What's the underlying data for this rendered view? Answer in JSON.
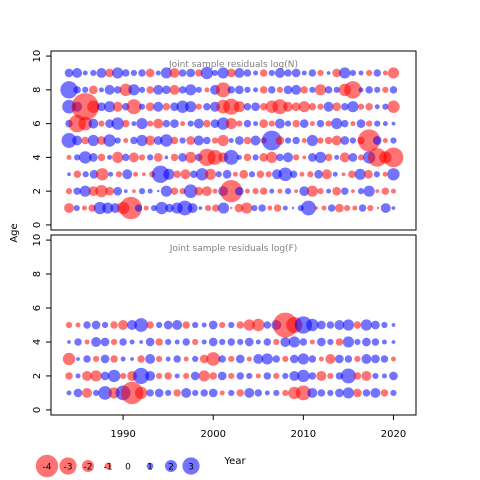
{
  "chart_data": [
    {
      "type": "scatter",
      "title": "Joint sample residuals log(N)",
      "xlabel": "",
      "ylabel": "Age",
      "xlim": [
        1982,
        2022.5
      ],
      "ylim": [
        -0.3,
        10.3
      ],
      "yticks": [
        0,
        2,
        4,
        6,
        8,
        10
      ],
      "x_start": 1984,
      "x_end": 2020,
      "ages": [
        1,
        2,
        3,
        4,
        5,
        6,
        7,
        8,
        9
      ],
      "residuals": {
        "1": [
          -0.8,
          0.5,
          -0.4,
          -0.6,
          1.0,
          0.9,
          0.8,
          -1.0,
          -1.8,
          0.6,
          -0.4,
          0.5,
          1.0,
          0.7,
          0.9,
          1.2,
          0.8,
          0.3,
          -0.5,
          -0.6,
          0.9,
          -0.2,
          -0.7,
          -0.9,
          0.5,
          0.6,
          -0.4,
          -0.6,
          0.4,
          0.2,
          0.5,
          1.2,
          -0.3,
          -0.4,
          0.6,
          -0.7,
          -0.5,
          -0.4,
          0.6,
          -0.5,
          -0.2,
          0.8,
          0.3
        ],
        "2": [
          -0.5,
          0.6,
          0.9,
          -0.8,
          -1.0,
          -0.7,
          0.7,
          0.3,
          -0.3,
          0.5,
          0.4,
          0.2,
          0.9,
          -0.6,
          -0.5,
          1.1,
          -0.7,
          -0.8,
          -0.4,
          0.8,
          -1.8,
          0.7,
          -0.4,
          -0.5,
          -0.6,
          0.4,
          -0.4,
          0.5,
          -0.3,
          0.8,
          -0.9,
          -0.5,
          0.4,
          -0.7,
          0.6,
          -0.3,
          0.5,
          0.9,
          -0.3,
          -0.6,
          -0.4
        ],
        "3": [
          0.3,
          -0.6,
          0.5,
          0.7,
          -1.0,
          0.4,
          -0.5,
          0.8,
          -0.4,
          -0.3,
          -0.5,
          1.4,
          0.9,
          -0.6,
          -0.8,
          0.6,
          1.0,
          -0.9,
          0.5,
          0.7,
          -0.4,
          -0.7,
          0.5,
          -0.6,
          -0.5,
          0.8,
          1.1,
          0.6,
          -0.4,
          -0.5,
          0.7,
          -0.8,
          0.4,
          -0.3,
          -0.6,
          0.9,
          -0.7,
          0.5,
          -0.4,
          1.0
        ],
        "4": [
          -0.4,
          0.5,
          1.0,
          0.7,
          -0.6,
          0.4,
          -0.9,
          0.6,
          -0.8,
          -0.5,
          0.5,
          -0.7,
          0.3,
          -0.6,
          0.7,
          -0.9,
          0.6,
          -1.4,
          -1.2,
          -0.8,
          1.2,
          0.4,
          -0.6,
          0.5,
          -0.7,
          -0.9,
          0.6,
          0.8,
          -0.5,
          -0.3,
          0.7,
          0.9,
          -0.6,
          0.4,
          -0.8,
          0.7,
          -0.5,
          1.0,
          -1.5,
          -1.0,
          -1.6
        ],
        "5": [
          1.2,
          0.8,
          -0.6,
          0.9,
          -0.7,
          1.0,
          0.5,
          -0.4,
          0.6,
          0.9,
          -0.8,
          0.7,
          1.0,
          -0.6,
          0.5,
          -0.7,
          0.8,
          0.6,
          -0.5,
          -0.9,
          0.4,
          0.7,
          -0.6,
          0.8,
          -0.5,
          1.6,
          -0.7,
          0.5,
          0.6,
          -0.4,
          0.9,
          -0.5,
          -0.6,
          -0.8,
          0.7,
          0.5,
          -0.6,
          -1.8,
          0.7,
          -0.4,
          0.5
        ],
        "6": [
          0.6,
          -1.4,
          -1.1,
          0.8,
          -0.5,
          0.7,
          1.0,
          -0.6,
          0.4,
          0.9,
          -0.5,
          -0.8,
          0.6,
          0.7,
          -0.4,
          0.5,
          0.8,
          -0.6,
          0.7,
          1.0,
          -0.9,
          -0.5,
          0.6,
          0.4,
          -0.7,
          -0.5,
          0.8,
          0.5,
          -0.6,
          0.7,
          -0.4,
          0.6,
          -0.5,
          0.9,
          0.6,
          -0.4,
          0.7,
          -0.5,
          0.5,
          0.4,
          0.3
        ],
        "7": [
          1.1,
          0.8,
          -2.2,
          -1.0,
          0.7,
          0.9,
          -0.8,
          0.6,
          -1.2,
          0.5,
          -0.7,
          0.8,
          -0.6,
          0.7,
          1.0,
          0.9,
          -0.5,
          0.6,
          0.8,
          -1.1,
          -1.3,
          -0.9,
          0.6,
          0.7,
          -0.6,
          -1.0,
          -1.2,
          -0.8,
          -0.7,
          -0.9,
          -0.6,
          -0.5,
          0.8,
          -0.7,
          0.6,
          0.9,
          -0.5,
          -0.6,
          0.4,
          0.5,
          -1.0
        ],
        "8": [
          1.4,
          0.6,
          0.5,
          -0.7,
          0.4,
          0.8,
          0.6,
          -1.0,
          0.9,
          0.5,
          -0.6,
          0.8,
          0.7,
          -0.8,
          0.6,
          0.9,
          0.5,
          -0.4,
          0.8,
          -1.2,
          0.6,
          0.7,
          0.5,
          0.4,
          -0.6,
          0.6,
          -0.5,
          0.7,
          0.8,
          -0.6,
          0.5,
          -0.9,
          0.6,
          0.5,
          -1.0,
          -1.4,
          0.4,
          0.6,
          0.5,
          -0.5,
          0.6
        ],
        "9": [
          0.7,
          0.8,
          0.4,
          0.5,
          0.8,
          -0.7,
          0.9,
          0.6,
          0.5,
          0.6,
          -0.7,
          0.4,
          0.9,
          -0.8,
          0.6,
          0.7,
          -0.6,
          1.0,
          0.5,
          0.9,
          -0.7,
          0.8,
          0.6,
          0.4,
          -0.6,
          0.5,
          0.8,
          0.6,
          0.7,
          0.4,
          0.6,
          -0.5,
          0.3,
          -0.7,
          0.9,
          0.5,
          0.4,
          -0.5,
          0.6,
          -0.4,
          -0.9
        ]
      }
    },
    {
      "type": "scatter",
      "title": "Joint sample residuals log(F)",
      "xlabel": "Year",
      "ylabel": "Age",
      "xlim": [
        1982,
        2022.5
      ],
      "ylim": [
        -0.3,
        10.3
      ],
      "xticks": [
        1990,
        2000,
        2010,
        2020
      ],
      "yticks": [
        0,
        2,
        4,
        6,
        8,
        10
      ],
      "x_start": 1984,
      "x_end": 2020,
      "ages": [
        1,
        2,
        3,
        4,
        5
      ],
      "residuals": {
        "1": [
          0.4,
          0.7,
          -0.8,
          0.5,
          1.1,
          -0.9,
          1.2,
          -1.8,
          -1.0,
          0.6,
          0.7,
          0.5,
          -0.6,
          0.8,
          0.5,
          0.6,
          0.7,
          -0.4,
          0.5,
          -0.6,
          0.8,
          0.6,
          0.4,
          0.5,
          -0.5,
          -1.0,
          -1.2,
          0.8,
          0.6,
          0.5,
          0.7,
          0.9,
          -0.7,
          0.6,
          0.8,
          -0.6,
          0.5
        ],
        "2": [
          -0.6,
          0.4,
          -0.8,
          -0.9,
          0.7,
          1.0,
          -0.5,
          -0.8,
          1.3,
          0.8,
          -0.5,
          -0.6,
          0.4,
          -0.5,
          0.7,
          -0.9,
          -0.6,
          0.7,
          -0.5,
          0.6,
          0.5,
          -0.4,
          0.6,
          -0.5,
          0.5,
          0.8,
          1.0,
          0.6,
          -0.8,
          -0.5,
          0.6,
          1.2,
          -0.6,
          -0.8,
          0.5,
          0.4,
          0.7
        ],
        "3": [
          -1.0,
          0.3,
          0.6,
          -0.5,
          0.7,
          -0.6,
          0.4,
          0.3,
          -0.6,
          0.8,
          -0.5,
          0.4,
          0.6,
          -0.4,
          0.5,
          -0.7,
          -1.1,
          0.6,
          -0.5,
          0.7,
          -0.4,
          0.8,
          0.9,
          0.6,
          -0.5,
          0.7,
          0.9,
          0.6,
          -0.4,
          -0.8,
          0.7,
          0.6,
          -0.5,
          0.8,
          0.7,
          0.6,
          -0.4
        ],
        "4": [
          0.3,
          0.6,
          -0.4,
          0.8,
          0.7,
          -0.5,
          0.6,
          0.4,
          0.3,
          0.7,
          -0.6,
          0.5,
          0.4,
          0.6,
          -0.5,
          0.4,
          0.7,
          0.5,
          0.6,
          0.5,
          0.7,
          0.4,
          0.6,
          -0.5,
          0.8,
          0.9,
          0.6,
          -0.4,
          0.7,
          0.5,
          -0.6,
          0.9,
          0.5,
          0.7,
          0.6,
          0.4,
          0.3
        ],
        "5": [
          -0.5,
          -0.4,
          0.6,
          0.7,
          0.5,
          -0.6,
          -0.8,
          0.8,
          1.1,
          -0.6,
          0.5,
          0.7,
          0.8,
          -0.6,
          0.5,
          0.4,
          0.7,
          -0.5,
          0.5,
          -0.6,
          -0.9,
          -1.0,
          0.6,
          0.8,
          -2.0,
          -1.3,
          1.4,
          1.0,
          0.7,
          0.6,
          0.8,
          0.9,
          -0.6,
          0.9,
          0.7,
          0.5,
          0.3
        ]
      }
    }
  ],
  "legend": {
    "entries": [
      {
        "value": -4,
        "label": "-4"
      },
      {
        "value": -3,
        "label": "-3"
      },
      {
        "value": -2,
        "label": "-2"
      },
      {
        "value": -1,
        "label": "-1"
      },
      {
        "value": 0,
        "label": "0"
      },
      {
        "value": 1,
        "label": "1"
      },
      {
        "value": 2,
        "label": "2"
      },
      {
        "value": 3,
        "label": "3"
      }
    ]
  },
  "colors": {
    "negative": "#ff0000",
    "positive": "#0000ff",
    "axis": "#000000",
    "title_text": "#808080"
  }
}
